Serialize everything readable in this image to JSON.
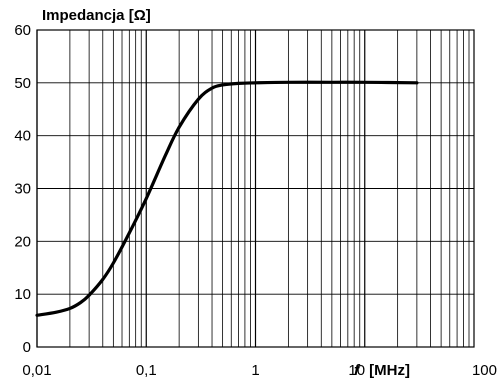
{
  "chart_data": {
    "type": "line",
    "ylabel": "Impedancja  [Ω]",
    "xlabel_symbol": "f",
    "xlabel_unit": "[MHz]",
    "x_scale": "log",
    "xlim": [
      0.01,
      100
    ],
    "ylim": [
      0,
      60
    ],
    "grid": true,
    "x_ticks": [
      {
        "value": 0.01,
        "label": "0,01"
      },
      {
        "value": 0.1,
        "label": "0,1"
      },
      {
        "value": 1,
        "label": "1"
      },
      {
        "value": 10,
        "label": "10"
      },
      {
        "value": 100,
        "label": "100"
      }
    ],
    "y_ticks": [
      {
        "value": 0,
        "label": "0"
      },
      {
        "value": 10,
        "label": "10"
      },
      {
        "value": 20,
        "label": "20"
      },
      {
        "value": 30,
        "label": "30"
      },
      {
        "value": 40,
        "label": "40"
      },
      {
        "value": 50,
        "label": "50"
      },
      {
        "value": 60,
        "label": "60"
      }
    ],
    "series": [
      {
        "color": "#000000",
        "x": [
          0.01,
          0.015,
          0.02,
          0.025,
          0.03,
          0.04,
          0.05,
          0.07,
          0.1,
          0.15,
          0.2,
          0.3,
          0.4,
          0.5,
          0.7,
          1,
          2,
          5,
          10,
          30
        ],
        "y": [
          6,
          6.6,
          7.3,
          8.4,
          9.8,
          12.8,
          15.9,
          21.6,
          28.1,
          36.3,
          41.6,
          46.9,
          49.0,
          49.6,
          49.9,
          50.0,
          50.1,
          50.1,
          50.1,
          50.0
        ]
      }
    ]
  }
}
